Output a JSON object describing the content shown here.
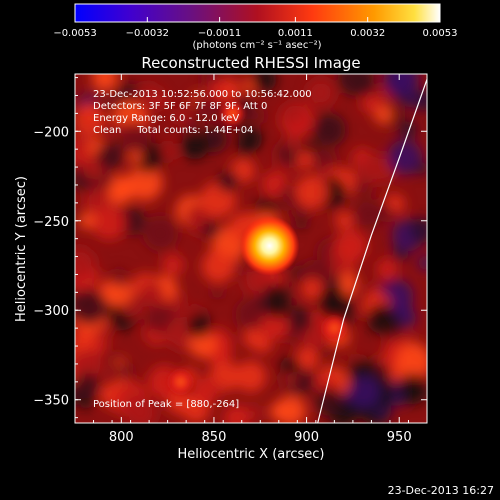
{
  "chart_data": {
    "type": "heatmap",
    "title": "Reconstructed RHESSI Image",
    "xlabel": "Heliocentric X (arcsec)",
    "ylabel": "Heliocentric Y (arcsec)",
    "xlim": [
      775,
      965
    ],
    "ylim": [
      -363,
      -168
    ],
    "x_ticks": [
      800,
      850,
      900,
      950
    ],
    "x_tick_labels": [
      "800",
      "850",
      "900",
      "950"
    ],
    "y_ticks": [
      -350,
      -300,
      -250,
      -200
    ],
    "y_tick_labels": [
      "−350",
      "−300",
      "−250",
      "−200"
    ],
    "colorbar": {
      "min": -0.0053,
      "max": 0.0053,
      "tick_values": [
        -0.0053,
        -0.0032,
        -0.0011,
        0.0011,
        0.0032,
        0.0053
      ],
      "tick_labels": [
        "−0.0053",
        "−0.0032",
        "−0.0011",
        "0.0011",
        "0.0032",
        "0.0053"
      ],
      "unit_label": "(photons cm⁻² s⁻¹ asec⁻²)",
      "colormap": [
        "#0000ff",
        "#6a00b0",
        "#7a1060",
        "#c01020",
        "#ff3010",
        "#ff8800",
        "#ffe030",
        "#ffffff"
      ]
    },
    "annotations": [
      "23-Dec-2013 10:52:56.000 to 10:56:42.000",
      "Detectors: 3F 5F 6F 7F 8F 9F, Att 0",
      "Energy Range: 6.0 - 12.0 keV",
      "Clean     Total counts: 1.44E+04"
    ],
    "peak_label": "Position of Peak = [880,-264]",
    "peak": {
      "x": 880,
      "y": -264
    },
    "limb_curve": [
      [
        966,
        -168
      ],
      [
        950,
        -215
      ],
      [
        935,
        -258
      ],
      [
        920,
        -305
      ],
      [
        906,
        -363
      ]
    ],
    "secondary_sources": [
      {
        "x": 832,
        "y": -340
      },
      {
        "x": 915,
        "y": -310
      },
      {
        "x": 860,
        "y": -190
      }
    ]
  },
  "footer": {
    "timestamp": "23-Dec-2013 16:27"
  }
}
